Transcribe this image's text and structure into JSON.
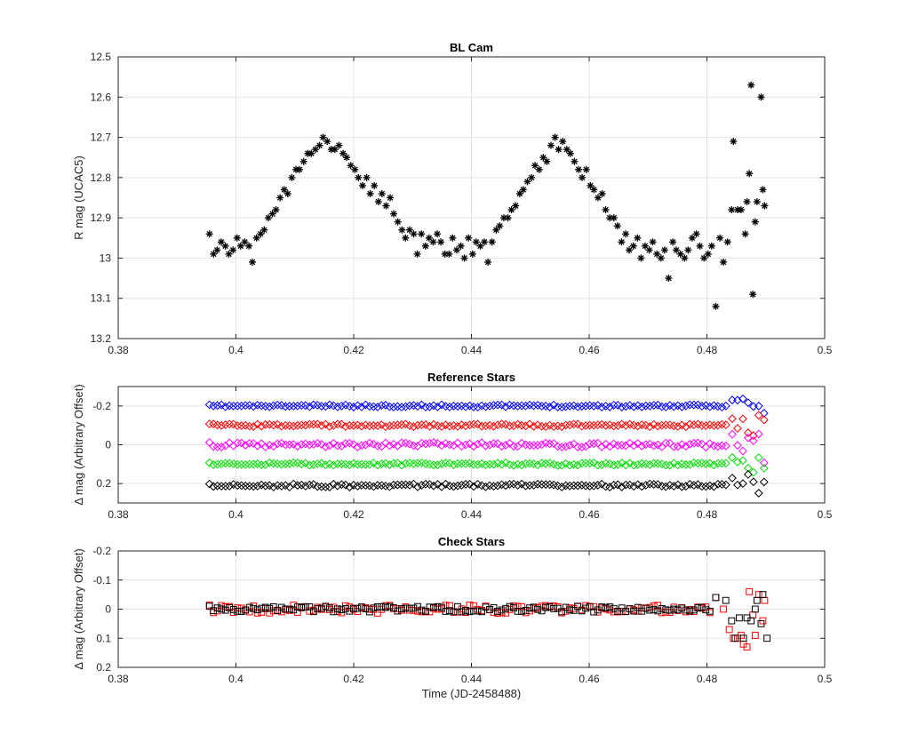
{
  "chart_data": [
    {
      "type": "scatter",
      "title": "BL Cam",
      "xlabel": "",
      "ylabel": "R mag (UCAC5)",
      "xlim": [
        0.38,
        0.5
      ],
      "ylim": [
        12.5,
        13.2
      ],
      "y_reversed": true,
      "grid": true,
      "xticks": [
        "0.38",
        "0.4",
        "0.42",
        "0.44",
        "0.46",
        "0.48",
        "0.5"
      ],
      "yticks": [
        "12.5",
        "12.6",
        "12.7",
        "12.8",
        "12.9",
        "13",
        "13.1",
        "13.2"
      ],
      "series": [
        {
          "marker": "asterisk",
          "color": "#000000",
          "points": [
            [
              0.3955,
              12.94
            ],
            [
              0.3962,
              12.99
            ],
            [
              0.3968,
              12.98
            ],
            [
              0.3975,
              12.96
            ],
            [
              0.3982,
              12.97
            ],
            [
              0.3988,
              12.99
            ],
            [
              0.3995,
              12.98
            ],
            [
              0.4002,
              12.95
            ],
            [
              0.4008,
              12.97
            ],
            [
              0.4015,
              12.96
            ],
            [
              0.4022,
              12.97
            ],
            [
              0.4028,
              13.01
            ],
            [
              0.4035,
              12.95
            ],
            [
              0.4042,
              12.94
            ],
            [
              0.4048,
              12.93
            ],
            [
              0.4055,
              12.9
            ],
            [
              0.4062,
              12.89
            ],
            [
              0.4068,
              12.88
            ],
            [
              0.4075,
              12.85
            ],
            [
              0.4082,
              12.83
            ],
            [
              0.4088,
              12.84
            ],
            [
              0.4095,
              12.8
            ],
            [
              0.4102,
              12.78
            ],
            [
              0.4108,
              12.78
            ],
            [
              0.4115,
              12.76
            ],
            [
              0.4122,
              12.74
            ],
            [
              0.4128,
              12.74
            ],
            [
              0.4135,
              12.73
            ],
            [
              0.4142,
              12.72
            ],
            [
              0.4148,
              12.7
            ],
            [
              0.4155,
              12.71
            ],
            [
              0.4162,
              12.73
            ],
            [
              0.4168,
              12.73
            ],
            [
              0.4175,
              12.72
            ],
            [
              0.4182,
              12.74
            ],
            [
              0.4188,
              12.75
            ],
            [
              0.4195,
              12.77
            ],
            [
              0.4202,
              12.78
            ],
            [
              0.4208,
              12.8
            ],
            [
              0.4215,
              12.82
            ],
            [
              0.4222,
              12.8
            ],
            [
              0.4228,
              12.84
            ],
            [
              0.4235,
              12.82
            ],
            [
              0.4242,
              12.86
            ],
            [
              0.4248,
              12.84
            ],
            [
              0.4255,
              12.87
            ],
            [
              0.4262,
              12.85
            ],
            [
              0.4268,
              12.89
            ],
            [
              0.4275,
              12.91
            ],
            [
              0.4282,
              12.93
            ],
            [
              0.4288,
              12.95
            ],
            [
              0.4295,
              12.93
            ],
            [
              0.4302,
              12.94
            ],
            [
              0.4308,
              12.99
            ],
            [
              0.4315,
              12.94
            ],
            [
              0.4322,
              12.97
            ],
            [
              0.4328,
              12.95
            ],
            [
              0.4335,
              12.96
            ],
            [
              0.4342,
              12.94
            ],
            [
              0.4348,
              12.96
            ],
            [
              0.4355,
              12.99
            ],
            [
              0.4362,
              12.99
            ],
            [
              0.4368,
              12.95
            ],
            [
              0.4375,
              12.98
            ],
            [
              0.4382,
              12.97
            ],
            [
              0.4388,
              13.0
            ],
            [
              0.4395,
              12.95
            ],
            [
              0.4402,
              12.99
            ],
            [
              0.4408,
              12.96
            ],
            [
              0.4415,
              12.97
            ],
            [
              0.4422,
              12.96
            ],
            [
              0.4428,
              13.01
            ],
            [
              0.4435,
              12.96
            ],
            [
              0.4442,
              12.93
            ],
            [
              0.4448,
              12.92
            ],
            [
              0.4455,
              12.9
            ],
            [
              0.4462,
              12.9
            ],
            [
              0.4468,
              12.88
            ],
            [
              0.4475,
              12.87
            ],
            [
              0.4482,
              12.84
            ],
            [
              0.4488,
              12.83
            ],
            [
              0.4495,
              12.81
            ],
            [
              0.4502,
              12.8
            ],
            [
              0.4508,
              12.77
            ],
            [
              0.4515,
              12.78
            ],
            [
              0.4522,
              12.75
            ],
            [
              0.4528,
              12.76
            ],
            [
              0.4535,
              12.72
            ],
            [
              0.4542,
              12.7
            ],
            [
              0.4548,
              12.73
            ],
            [
              0.4555,
              12.71
            ],
            [
              0.4562,
              12.73
            ],
            [
              0.4568,
              12.74
            ],
            [
              0.4575,
              12.76
            ],
            [
              0.4582,
              12.78
            ],
            [
              0.4588,
              12.8
            ],
            [
              0.4595,
              12.78
            ],
            [
              0.4602,
              12.82
            ],
            [
              0.4608,
              12.83
            ],
            [
              0.4615,
              12.85
            ],
            [
              0.4622,
              12.84
            ],
            [
              0.4628,
              12.88
            ],
            [
              0.4635,
              12.9
            ],
            [
              0.4642,
              12.9
            ],
            [
              0.4648,
              12.92
            ],
            [
              0.4655,
              12.96
            ],
            [
              0.4662,
              12.94
            ],
            [
              0.4668,
              12.98
            ],
            [
              0.4675,
              12.97
            ],
            [
              0.4682,
              12.95
            ],
            [
              0.4688,
              13.0
            ],
            [
              0.4695,
              12.97
            ],
            [
              0.4702,
              12.98
            ],
            [
              0.4708,
              12.96
            ],
            [
              0.4715,
              12.99
            ],
            [
              0.4722,
              13.0
            ],
            [
              0.4728,
              12.98
            ],
            [
              0.4735,
              13.05
            ],
            [
              0.4742,
              12.96
            ],
            [
              0.4748,
              12.98
            ],
            [
              0.4755,
              12.99
            ],
            [
              0.4762,
              13.0
            ],
            [
              0.4768,
              12.98
            ],
            [
              0.4775,
              12.95
            ],
            [
              0.4782,
              12.94
            ],
            [
              0.4788,
              12.97
            ],
            [
              0.4795,
              13.0
            ],
            [
              0.4802,
              12.99
            ],
            [
              0.4808,
              12.97
            ],
            [
              0.4815,
              13.12
            ],
            [
              0.4822,
              12.95
            ],
            [
              0.4828,
              13.01
            ],
            [
              0.4835,
              12.96
            ],
            [
              0.4842,
              12.88
            ],
            [
              0.4845,
              12.71
            ],
            [
              0.4852,
              12.88
            ],
            [
              0.4858,
              12.88
            ],
            [
              0.4865,
              12.94
            ],
            [
              0.4868,
              12.86
            ],
            [
              0.4872,
              12.79
            ],
            [
              0.4875,
              12.57
            ],
            [
              0.4878,
              13.09
            ],
            [
              0.4882,
              12.91
            ],
            [
              0.4885,
              12.86
            ],
            [
              0.4892,
              12.6
            ],
            [
              0.4895,
              12.83
            ],
            [
              0.4898,
              12.87
            ]
          ]
        }
      ]
    },
    {
      "type": "scatter",
      "title": "Reference Stars",
      "xlabel": "",
      "ylabel": "Δ mag (Arbitrary Offset)",
      "xlim": [
        0.38,
        0.5
      ],
      "ylim": [
        -0.3,
        0.3
      ],
      "y_reversed": true,
      "grid": true,
      "xticks": [
        "0.38",
        "0.4",
        "0.42",
        "0.44",
        "0.46",
        "0.48",
        "0.5"
      ],
      "yticks": [
        "-0.2",
        "0",
        "0.2"
      ],
      "series": [
        {
          "marker": "diamond",
          "color": "#0000ff",
          "level": -0.2,
          "amp": 0.006,
          "seed": 11
        },
        {
          "marker": "diamond",
          "color": "#ff0000",
          "level": -0.1,
          "amp": 0.007,
          "seed": 23
        },
        {
          "marker": "diamond",
          "color": "#ff00ff",
          "level": 0.0,
          "amp": 0.012,
          "seed": 37
        },
        {
          "marker": "diamond",
          "color": "#00dd00",
          "level": 0.1,
          "amp": 0.007,
          "seed": 51
        },
        {
          "marker": "diamond",
          "color": "#000000",
          "level": 0.21,
          "amp": 0.008,
          "seed": 67
        }
      ],
      "x_start": 0.3955,
      "x_end": 0.4835,
      "x_step": 0.00068
    },
    {
      "type": "scatter",
      "title": "Check Stars",
      "xlabel": "Time (JD-2458488)",
      "ylabel": "Δ mag (Arbitrary Offset)",
      "xlim": [
        0.38,
        0.5
      ],
      "ylim": [
        -0.2,
        0.2
      ],
      "y_reversed": true,
      "grid": true,
      "xticks": [
        "0.38",
        "0.4",
        "0.42",
        "0.44",
        "0.46",
        "0.48",
        "0.5"
      ],
      "yticks": [
        "-0.2",
        "-0.1",
        "0",
        "0.1",
        "0.2"
      ],
      "series": [
        {
          "marker": "square",
          "color": "#ff0000",
          "level": 0.0,
          "amp": 0.014,
          "seed": 83
        },
        {
          "marker": "square",
          "color": "#000000",
          "level": 0.0,
          "amp": 0.01,
          "seed": 97
        }
      ],
      "x_start": 0.3955,
      "x_end": 0.481,
      "x_step": 0.00068,
      "tail": {
        "red": [
          [
            0.4815,
            -0.04
          ],
          [
            0.4828,
            0.0
          ],
          [
            0.4838,
            0.07
          ],
          [
            0.4845,
            0.1
          ],
          [
            0.4852,
            0.1
          ],
          [
            0.4858,
            0.09
          ],
          [
            0.4862,
            0.12
          ],
          [
            0.4868,
            0.13
          ],
          [
            0.4872,
            -0.06
          ],
          [
            0.4878,
            0.02
          ],
          [
            0.4882,
            0.09
          ],
          [
            0.4888,
            -0.05
          ],
          [
            0.4895,
            0.04
          ],
          [
            0.4898,
            -0.03
          ]
        ],
        "black": [
          [
            0.4815,
            -0.04
          ],
          [
            0.4832,
            -0.03
          ],
          [
            0.4842,
            0.04
          ],
          [
            0.4848,
            0.1
          ],
          [
            0.4855,
            0.03
          ],
          [
            0.4862,
            0.1
          ],
          [
            0.4868,
            0.03
          ],
          [
            0.4875,
            0.04
          ],
          [
            0.4882,
            0.0
          ],
          [
            0.4885,
            -0.03
          ],
          [
            0.4892,
            0.05
          ],
          [
            0.4895,
            -0.05
          ],
          [
            0.4902,
            0.1
          ]
        ]
      }
    }
  ]
}
